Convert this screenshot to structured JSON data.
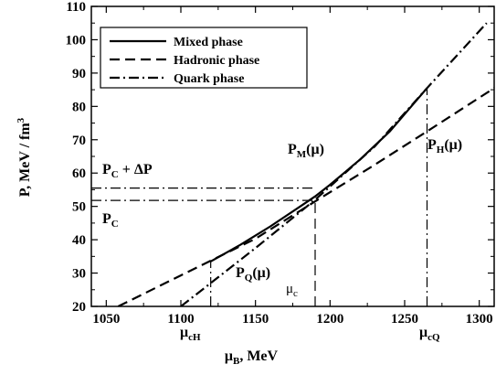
{
  "chart_data": {
    "type": "line",
    "title": "",
    "xlabel": {
      "main": "μ",
      "sub": "B",
      "rest": ", MeV"
    },
    "ylabel": {
      "main": "P, MeV / fm",
      "sup": "3"
    },
    "xlim": [
      1040,
      1310
    ],
    "ylim": [
      20,
      110
    ],
    "xticks": [
      1050,
      1100,
      1150,
      1200,
      1250,
      1300
    ],
    "yticks": [
      20,
      30,
      40,
      50,
      60,
      70,
      80,
      90,
      100,
      110
    ],
    "legend_position": "top-left",
    "series": [
      {
        "name": "Mixed phase",
        "style": "solid",
        "x": [
          1120,
          1140,
          1160,
          1180,
          1190,
          1200,
          1220,
          1240,
          1265
        ],
        "y": [
          33.5,
          38.5,
          44.0,
          50.0,
          53.0,
          56.5,
          64.0,
          72.5,
          85.5
        ]
      },
      {
        "name": "Hadronic phase",
        "style": "dashed",
        "x": [
          1058,
          1100,
          1150,
          1190,
          1230,
          1265,
          1310
        ],
        "y": [
          20.0,
          29.3,
          40.3,
          51.5,
          62.5,
          72.5,
          85.5
        ]
      },
      {
        "name": "Quark phase",
        "style": "dashdot",
        "x": [
          1100,
          1120,
          1150,
          1190,
          1230,
          1265,
          1305
        ],
        "y": [
          20.0,
          27.0,
          37.5,
          52.0,
          68.0,
          85.5,
          105.0
        ]
      }
    ],
    "reference_lines": [
      {
        "orientation": "horizontal",
        "value": 51.8,
        "style": "dashdot",
        "x_to": 1190
      },
      {
        "orientation": "horizontal",
        "value": 55.5,
        "style": "dashdot",
        "x_to": 1190
      },
      {
        "orientation": "vertical",
        "value": 1120,
        "style": "dashdot",
        "y_to": 33.5
      },
      {
        "orientation": "vertical",
        "value": 1190,
        "style": "dashed",
        "y_to": 53.0
      },
      {
        "orientation": "vertical",
        "value": 1265,
        "style": "dashdot",
        "y_to": 85.5
      }
    ],
    "annotations": {
      "pc_plus_dp": {
        "main": "P",
        "sub": "C",
        "rest": " + ΔP"
      },
      "pc": {
        "main": "P",
        "sub": "C"
      },
      "pm": {
        "main": "P",
        "sub": "M",
        "rest": "(μ)"
      },
      "ph": {
        "main": "P",
        "sub": "H",
        "rest": "(μ)"
      },
      "pq": {
        "main": "P",
        "sub": "Q",
        "rest": "(μ)"
      },
      "muc": {
        "main": "μ",
        "sub": "c"
      },
      "much": {
        "main": "μ",
        "sub": "cH"
      },
      "mucq": {
        "main": "μ",
        "sub": "cQ"
      }
    }
  }
}
